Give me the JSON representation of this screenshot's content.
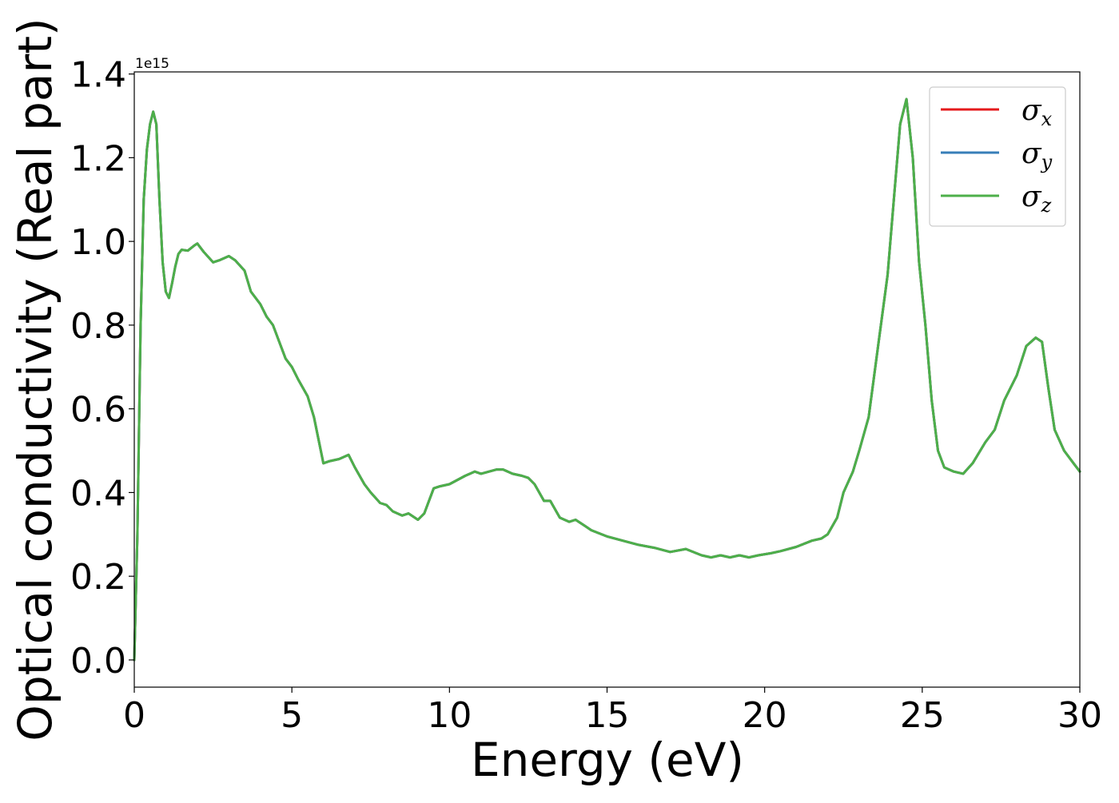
{
  "chart_data": {
    "type": "line",
    "xlabel": "Energy (eV)",
    "ylabel": "Optical conductivity (Real part)",
    "y_offset_label": "1e15",
    "xlim": [
      0,
      30
    ],
    "ylim": [
      -0.065,
      1.405
    ],
    "x_ticks": [
      0,
      5,
      10,
      15,
      20,
      25,
      30
    ],
    "x_tick_labels": [
      "0",
      "5",
      "10",
      "15",
      "20",
      "25",
      "30"
    ],
    "y_ticks": [
      0.0,
      0.2,
      0.4,
      0.6,
      0.8,
      1.0,
      1.2,
      1.4
    ],
    "y_tick_labels": [
      "0.0",
      "0.2",
      "0.4",
      "0.6",
      "0.8",
      "1.0",
      "1.2",
      "1.4"
    ],
    "grid": false,
    "legend_position": "top-right",
    "series": [
      {
        "symbol": "σ",
        "subscript": "x",
        "color": "#e41a1c"
      },
      {
        "symbol": "σ",
        "subscript": "y",
        "color": "#377eb8"
      },
      {
        "symbol": "σ",
        "subscript": "z",
        "color": "#4daf4a"
      }
    ],
    "x": [
      0.0,
      0.1,
      0.2,
      0.3,
      0.4,
      0.5,
      0.6,
      0.7,
      0.8,
      0.9,
      1.0,
      1.1,
      1.2,
      1.3,
      1.4,
      1.5,
      1.7,
      1.9,
      2.0,
      2.2,
      2.5,
      2.7,
      3.0,
      3.2,
      3.5,
      3.7,
      4.0,
      4.2,
      4.4,
      4.6,
      4.8,
      5.0,
      5.2,
      5.5,
      5.7,
      6.0,
      6.2,
      6.5,
      6.8,
      7.0,
      7.3,
      7.5,
      7.8,
      8.0,
      8.2,
      8.5,
      8.7,
      9.0,
      9.2,
      9.5,
      9.7,
      10.0,
      10.5,
      10.8,
      11.0,
      11.5,
      11.7,
      12.0,
      12.3,
      12.5,
      12.7,
      13.0,
      13.2,
      13.5,
      13.8,
      14.0,
      14.3,
      14.5,
      15.0,
      15.5,
      16.0,
      16.5,
      17.0,
      17.5,
      18.0,
      18.3,
      18.6,
      18.9,
      19.2,
      19.5,
      19.8,
      20.2,
      20.5,
      21.0,
      21.5,
      21.8,
      22.0,
      22.3,
      22.5,
      22.8,
      23.0,
      23.3,
      23.6,
      23.9,
      24.1,
      24.3,
      24.5,
      24.7,
      24.9,
      25.1,
      25.3,
      25.5,
      25.7,
      26.0,
      26.3,
      26.6,
      27.0,
      27.3,
      27.6,
      28.0,
      28.3,
      28.6,
      28.8,
      29.0,
      29.2,
      29.5,
      29.8,
      30.0
    ],
    "y": [
      0.0,
      0.3,
      0.8,
      1.1,
      1.22,
      1.28,
      1.31,
      1.28,
      1.1,
      0.95,
      0.88,
      0.865,
      0.9,
      0.94,
      0.97,
      0.98,
      0.978,
      0.99,
      0.995,
      0.975,
      0.95,
      0.955,
      0.965,
      0.955,
      0.93,
      0.88,
      0.85,
      0.82,
      0.8,
      0.76,
      0.72,
      0.7,
      0.67,
      0.63,
      0.58,
      0.47,
      0.475,
      0.48,
      0.49,
      0.46,
      0.42,
      0.4,
      0.375,
      0.37,
      0.355,
      0.345,
      0.35,
      0.335,
      0.35,
      0.41,
      0.415,
      0.42,
      0.44,
      0.45,
      0.445,
      0.455,
      0.455,
      0.445,
      0.44,
      0.435,
      0.42,
      0.38,
      0.38,
      0.34,
      0.33,
      0.335,
      0.32,
      0.31,
      0.295,
      0.285,
      0.275,
      0.268,
      0.258,
      0.265,
      0.25,
      0.245,
      0.25,
      0.245,
      0.25,
      0.245,
      0.25,
      0.255,
      0.26,
      0.27,
      0.285,
      0.29,
      0.3,
      0.34,
      0.4,
      0.45,
      0.5,
      0.58,
      0.75,
      0.92,
      1.1,
      1.28,
      1.34,
      1.2,
      0.95,
      0.8,
      0.62,
      0.5,
      0.46,
      0.45,
      0.445,
      0.47,
      0.52,
      0.55,
      0.62,
      0.68,
      0.75,
      0.77,
      0.76,
      0.65,
      0.55,
      0.5,
      0.47,
      0.45
    ]
  }
}
